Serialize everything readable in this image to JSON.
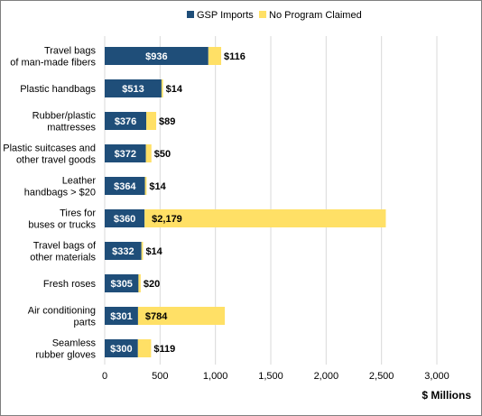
{
  "chart_data": {
    "type": "bar",
    "orientation": "horizontal",
    "stacked": true,
    "categories": [
      [
        "Travel bags",
        "of man-made fibers"
      ],
      [
        "Plastic handbags"
      ],
      [
        "Rubber/plastic",
        "mattresses"
      ],
      [
        "Plastic suitcases and",
        "other travel goods"
      ],
      [
        "Leather",
        "handbags > $20"
      ],
      [
        "Tires for",
        "buses or trucks"
      ],
      [
        "Travel bags of",
        "other materials"
      ],
      [
        "Fresh roses"
      ],
      [
        "Air conditioning",
        "parts"
      ],
      [
        "Seamless",
        "rubber gloves"
      ]
    ],
    "series": [
      {
        "name": "GSP Imports",
        "color": "#1f4e79",
        "values": [
          936,
          513,
          376,
          372,
          364,
          360,
          332,
          305,
          301,
          300
        ],
        "labels": [
          "$936",
          "$513",
          "$376",
          "$372",
          "$364",
          "$360",
          "$332",
          "$305",
          "$301",
          "$300"
        ]
      },
      {
        "name": "No Program Claimed",
        "color": "#ffe066",
        "values": [
          116,
          14,
          89,
          50,
          14,
          2179,
          14,
          20,
          784,
          119
        ],
        "labels": [
          "$116",
          "$14",
          "$89",
          "$50",
          "$14",
          "$2,179",
          "$14",
          "$20",
          "$784",
          "$119"
        ]
      }
    ],
    "xlim": [
      0,
      3000
    ],
    "xticks": [
      0,
      500,
      1000,
      1500,
      2000,
      2500,
      3000
    ],
    "xtick_labels": [
      "0",
      "500",
      "1,000",
      "1,500",
      "2,000",
      "2,500",
      "3,000"
    ],
    "xlabel": "$ Millions",
    "grid": "vertical",
    "legend_position": "top"
  }
}
